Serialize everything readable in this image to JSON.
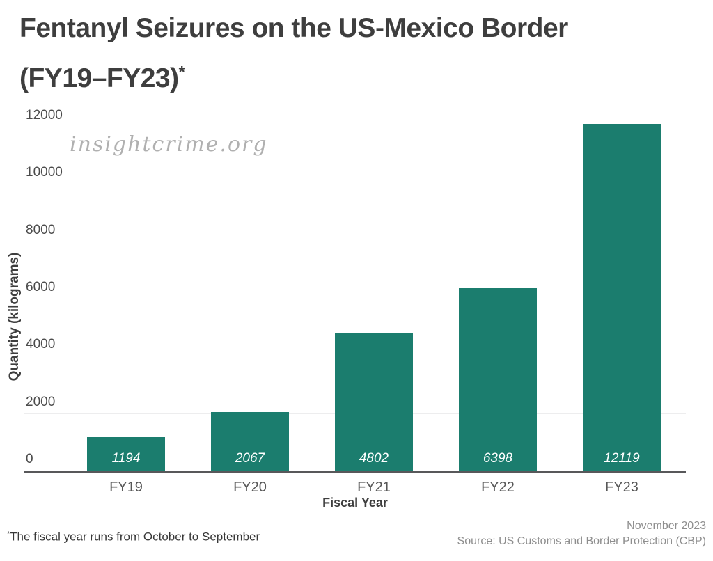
{
  "title": {
    "line1": "Fentanyl Seizures on the US-Mexico Border",
    "line2": "(FY19–FY23)",
    "asterisk": "*"
  },
  "watermark": "insightcrime.org",
  "chart_data": {
    "type": "bar",
    "title": "Fentanyl Seizures on the US-Mexico Border (FY19–FY23)*",
    "categories": [
      "FY19",
      "FY20",
      "FY21",
      "FY22",
      "FY23"
    ],
    "values": [
      1194,
      2067,
      4802,
      6398,
      12119
    ],
    "data_labels": [
      "1194",
      "2067",
      "4802",
      "6398",
      "12119"
    ],
    "xlabel": "Fiscal Year",
    "ylabel": "Quantity (kilograms)",
    "ylim": [
      0,
      12000
    ],
    "yticks": [
      0,
      2000,
      4000,
      6000,
      8000,
      10000,
      12000
    ],
    "grid": true,
    "legend": false,
    "bar_color": "#1b7d6e",
    "data_label_color": "#ffffff"
  },
  "footer": {
    "note": "*The fiscal year runs from October to September",
    "note_sup": "*",
    "note_text": "The fiscal year runs from October to September",
    "date": "November 2023",
    "source": "Source: US Customs and Border Protection (CBP)"
  }
}
